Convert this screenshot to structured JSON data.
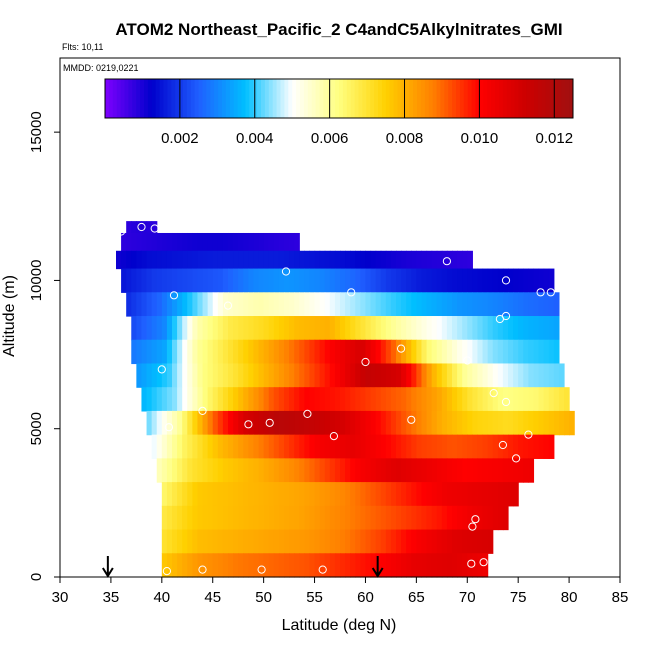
{
  "header": {
    "title": "ATOM2 Northeast_Pacific_2 C4andC5Alkylnitrates_GMI",
    "flights": "Flts: 10,11",
    "dates": "MMDD: 0219,0221"
  },
  "colors": {
    "scale": [
      "#7f00ff",
      "#0000cc",
      "#1f5fff",
      "#00bfff",
      "#ffffff",
      "#ffff80",
      "#ffd000",
      "#ff8000",
      "#ff0000",
      "#cc0000",
      "#a01010"
    ]
  },
  "chart_data": {
    "type": "heatmap",
    "title": "ATOM2 Northeast_Pacific_2 C4andC5Alkylnitrates_GMI",
    "xlabel": "Latitude (deg N)",
    "ylabel": "Altitude (m)",
    "xlim": [
      30,
      85
    ],
    "ylim": [
      0,
      17500
    ],
    "x_ticks": [
      "30",
      "35",
      "40",
      "45",
      "50",
      "55",
      "60",
      "65",
      "70",
      "75",
      "80",
      "85"
    ],
    "y_ticks": [
      "0",
      "5000",
      "10000",
      "15000"
    ],
    "colorbar": {
      "min": 0.0,
      "max": 0.0125,
      "ticks": [
        "0.002",
        "0.004",
        "0.006",
        "0.008",
        "0.010",
        "0.012"
      ],
      "tick_values": [
        0.002,
        0.004,
        0.006,
        0.008,
        0.01,
        0.012
      ]
    },
    "grid": false,
    "arrows_at_latitude": [
      34.7,
      61.2
    ],
    "model_field_rows": [
      {
        "alt_lo": 11600,
        "alt_hi": 12000,
        "lat_min": 36.5,
        "lat_max": 39.5,
        "values": [
          0.0008,
          0.0009,
          0.0009,
          0.0008
        ]
      },
      {
        "alt_lo": 11000,
        "alt_hi": 11600,
        "lat_min": 36.0,
        "lat_max": 53.5,
        "values": [
          0.0008,
          0.0009,
          0.001,
          0.0011,
          0.0011,
          0.001,
          0.0009,
          0.0008
        ]
      },
      {
        "alt_lo": 10400,
        "alt_hi": 11000,
        "lat_min": 35.5,
        "lat_max": 70.5,
        "values": [
          0.0011,
          0.0014,
          0.0015,
          0.0016,
          0.0016,
          0.0016,
          0.0015,
          0.0014,
          0.0012,
          0.001,
          0.0009,
          0.0008
        ]
      },
      {
        "alt_lo": 9600,
        "alt_hi": 10400,
        "lat_min": 36.0,
        "lat_max": 78.5,
        "values": [
          0.0015,
          0.002,
          0.0022,
          0.0024,
          0.003,
          0.0032,
          0.003,
          0.0026,
          0.002,
          0.0016,
          0.0014,
          0.0013,
          0.0012,
          0.0011
        ]
      },
      {
        "alt_lo": 8800,
        "alt_hi": 9600,
        "lat_min": 36.5,
        "lat_max": 79.0,
        "values": [
          0.0018,
          0.0026,
          0.004,
          0.0055,
          0.0058,
          0.0055,
          0.005,
          0.0045,
          0.004,
          0.0036,
          0.0032,
          0.003,
          0.0027,
          0.0025
        ]
      },
      {
        "alt_lo": 8000,
        "alt_hi": 8800,
        "lat_min": 37.0,
        "lat_max": 79.0,
        "values": [
          0.0022,
          0.003,
          0.0058,
          0.0068,
          0.0072,
          0.0078,
          0.008,
          0.007,
          0.006,
          0.0052,
          0.0046,
          0.004,
          0.0036,
          0.0034
        ]
      },
      {
        "alt_lo": 7200,
        "alt_hi": 8000,
        "lat_min": 37.0,
        "lat_max": 79.0,
        "values": [
          0.0028,
          0.0034,
          0.006,
          0.007,
          0.008,
          0.009,
          0.01,
          0.011,
          0.009,
          0.0064,
          0.0052,
          0.0044,
          0.004,
          0.0038
        ]
      },
      {
        "alt_lo": 6400,
        "alt_hi": 7200,
        "lat_min": 37.5,
        "lat_max": 79.5,
        "values": [
          0.0032,
          0.004,
          0.0062,
          0.007,
          0.008,
          0.009,
          0.01,
          0.0115,
          0.011,
          0.008,
          0.006,
          0.005,
          0.0044,
          0.0042
        ]
      },
      {
        "alt_lo": 5600,
        "alt_hi": 6400,
        "lat_min": 38.0,
        "lat_max": 80.0,
        "values": [
          0.0036,
          0.0044,
          0.0064,
          0.0078,
          0.0092,
          0.01,
          0.0098,
          0.0094,
          0.009,
          0.0082,
          0.007,
          0.0062,
          0.0064,
          0.007
        ]
      },
      {
        "alt_lo": 4800,
        "alt_hi": 5600,
        "lat_min": 38.5,
        "lat_max": 80.5,
        "values": [
          0.0042,
          0.006,
          0.009,
          0.011,
          0.0118,
          0.0115,
          0.011,
          0.01,
          0.009,
          0.008,
          0.0074,
          0.0072,
          0.0076,
          0.008
        ]
      },
      {
        "alt_lo": 4000,
        "alt_hi": 4800,
        "lat_min": 39.0,
        "lat_max": 78.5,
        "values": [
          0.0048,
          0.0066,
          0.0078,
          0.0086,
          0.0094,
          0.0102,
          0.0106,
          0.01,
          0.0094,
          0.0092,
          0.0094,
          0.0098,
          0.01
        ]
      },
      {
        "alt_lo": 3200,
        "alt_hi": 4000,
        "lat_min": 39.5,
        "lat_max": 76.5,
        "values": [
          0.0056,
          0.007,
          0.0076,
          0.008,
          0.0086,
          0.0094,
          0.0102,
          0.0108,
          0.0104,
          0.01,
          0.0102,
          0.0104
        ]
      },
      {
        "alt_lo": 2400,
        "alt_hi": 3200,
        "lat_min": 40.0,
        "lat_max": 75.0,
        "values": [
          0.0064,
          0.0076,
          0.0078,
          0.008,
          0.0082,
          0.0086,
          0.0092,
          0.0098,
          0.0104,
          0.0106,
          0.0108
        ]
      },
      {
        "alt_lo": 1600,
        "alt_hi": 2400,
        "lat_min": 40.0,
        "lat_max": 74.0,
        "values": [
          0.0068,
          0.0076,
          0.0078,
          0.008,
          0.0082,
          0.0086,
          0.009,
          0.0094,
          0.0098,
          0.0104,
          0.0108
        ]
      },
      {
        "alt_lo": 800,
        "alt_hi": 1600,
        "lat_min": 40.0,
        "lat_max": 72.5,
        "values": [
          0.007,
          0.0078,
          0.008,
          0.0082,
          0.0084,
          0.0088,
          0.0094,
          0.0102,
          0.0108,
          0.011
        ]
      },
      {
        "alt_lo": 0,
        "alt_hi": 800,
        "lat_min": 40.0,
        "lat_max": 72.0,
        "values": [
          0.0076,
          0.0084,
          0.0088,
          0.009,
          0.0092,
          0.0096,
          0.01,
          0.0106,
          0.0108,
          0.0104
        ]
      }
    ],
    "observation_points": [
      {
        "lat": 36.0,
        "alt": 11650
      },
      {
        "lat": 38.0,
        "alt": 11800
      },
      {
        "lat": 39.3,
        "alt": 11750
      },
      {
        "lat": 52.2,
        "alt": 10300
      },
      {
        "lat": 68.0,
        "alt": 10650
      },
      {
        "lat": 41.2,
        "alt": 9500
      },
      {
        "lat": 58.6,
        "alt": 9600
      },
      {
        "lat": 73.8,
        "alt": 10000
      },
      {
        "lat": 77.2,
        "alt": 9600
      },
      {
        "lat": 78.2,
        "alt": 9600
      },
      {
        "lat": 73.8,
        "alt": 8800
      },
      {
        "lat": 73.2,
        "alt": 8700
      },
      {
        "lat": 46.5,
        "alt": 9150
      },
      {
        "lat": 63.5,
        "alt": 7700
      },
      {
        "lat": 60.0,
        "alt": 7250
      },
      {
        "lat": 70.0,
        "alt": 7300
      },
      {
        "lat": 40.0,
        "alt": 7000
      },
      {
        "lat": 72.6,
        "alt": 6200
      },
      {
        "lat": 73.8,
        "alt": 5900
      },
      {
        "lat": 44.0,
        "alt": 5600
      },
      {
        "lat": 54.3,
        "alt": 5500
      },
      {
        "lat": 48.5,
        "alt": 5150
      },
      {
        "lat": 50.6,
        "alt": 5200
      },
      {
        "lat": 64.5,
        "alt": 5300
      },
      {
        "lat": 40.7,
        "alt": 5050
      },
      {
        "lat": 56.9,
        "alt": 4750
      },
      {
        "lat": 76.0,
        "alt": 4800
      },
      {
        "lat": 73.5,
        "alt": 4450
      },
      {
        "lat": 74.8,
        "alt": 4000
      },
      {
        "lat": 70.8,
        "alt": 1950
      },
      {
        "lat": 70.5,
        "alt": 1700
      },
      {
        "lat": 40.5,
        "alt": 200
      },
      {
        "lat": 44.0,
        "alt": 250
      },
      {
        "lat": 49.8,
        "alt": 250
      },
      {
        "lat": 55.8,
        "alt": 250
      },
      {
        "lat": 70.4,
        "alt": 450
      },
      {
        "lat": 71.6,
        "alt": 500
      }
    ]
  }
}
